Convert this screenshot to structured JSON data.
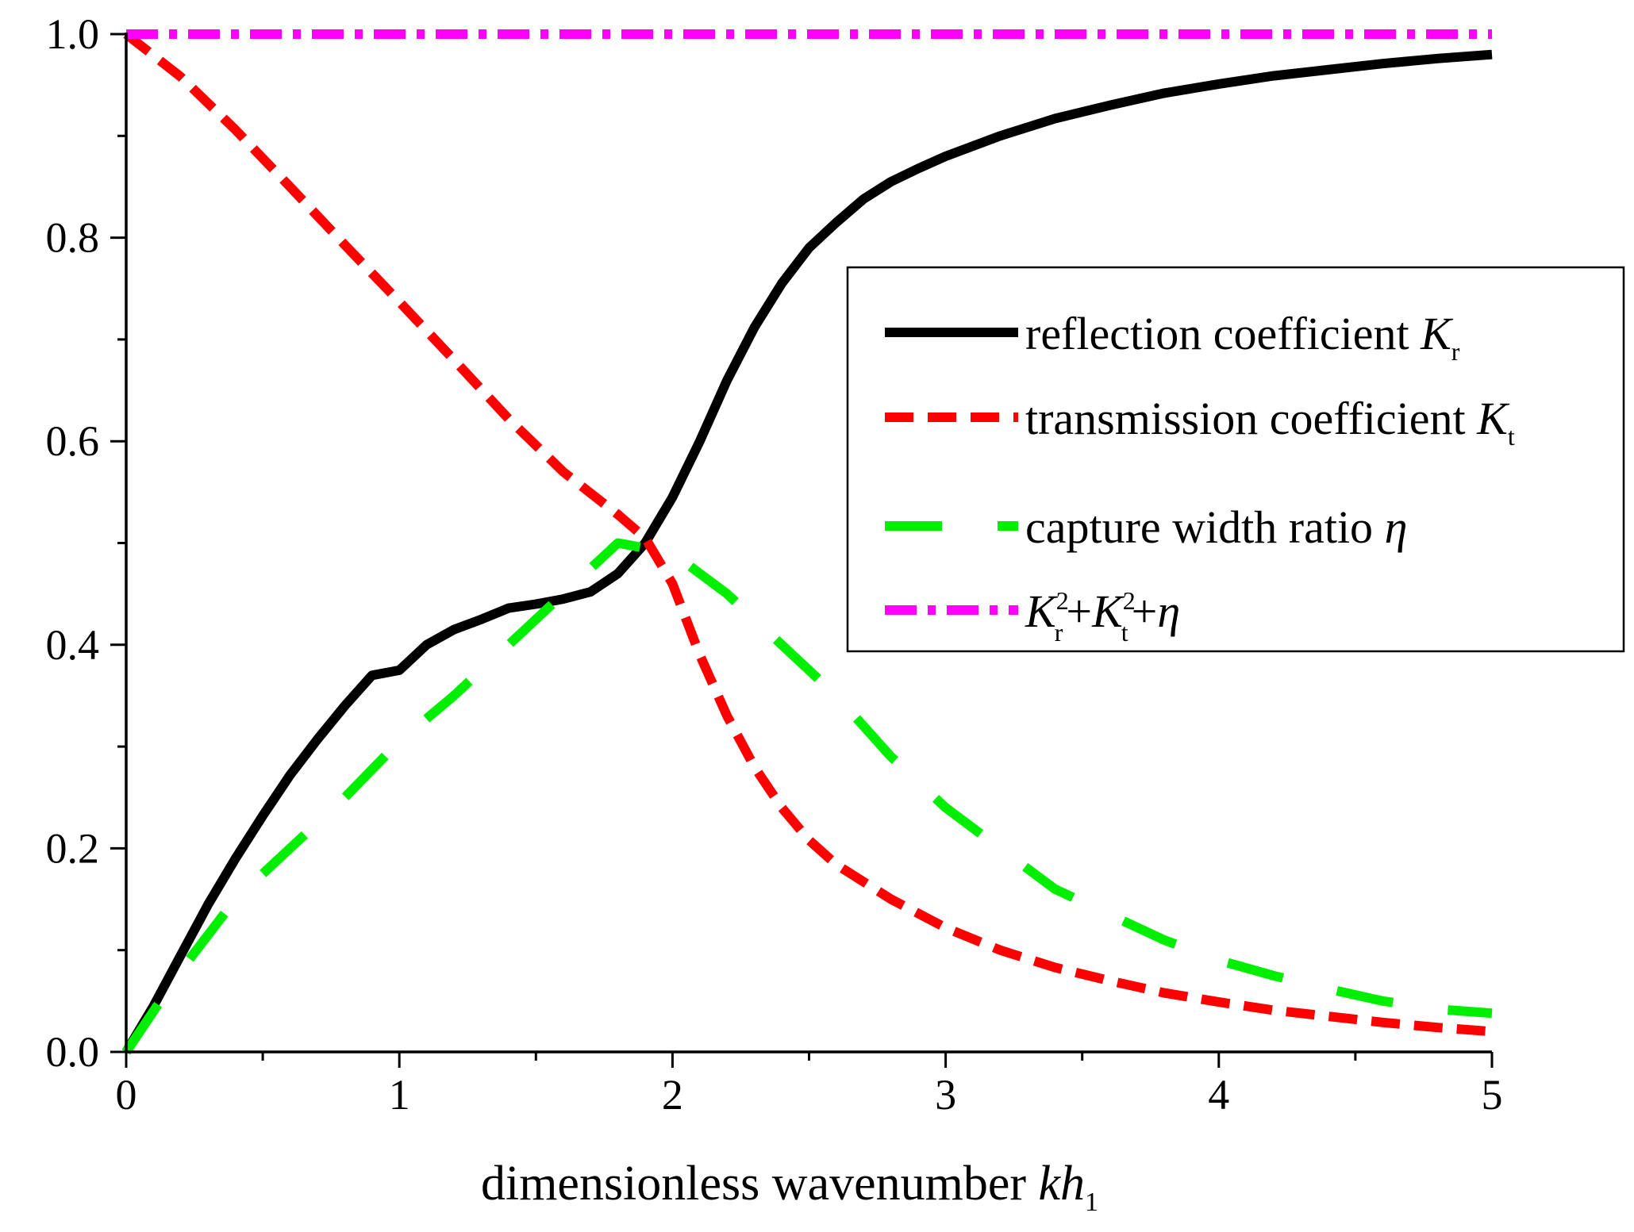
{
  "chart_data": {
    "type": "line",
    "title": "",
    "xlabel": "dimensionless wavenumber kh1",
    "xlabel_parts": {
      "main": "dimensionless wavenumber ",
      "italic": "kh",
      "sub": "1"
    },
    "ylabel": "",
    "xlim": [
      0,
      5
    ],
    "ylim": [
      0,
      1
    ],
    "x_ticks": [
      0,
      1,
      2,
      3,
      4,
      5
    ],
    "x_tick_labels": [
      "0",
      "1",
      "2",
      "3",
      "4",
      "5"
    ],
    "y_ticks": [
      0,
      0.2,
      0.4,
      0.6,
      0.8,
      1.0
    ],
    "y_tick_labels": [
      "0.0",
      "0.2",
      "0.4",
      "0.6",
      "0.8",
      "1.0"
    ],
    "grid": false,
    "legend_position": "right",
    "series": [
      {
        "name": "reflection coefficient Kr",
        "legend_label": "reflection coefficient ",
        "legend_symbol": "K",
        "legend_sub": "r",
        "color": "#000000",
        "style": "solid",
        "x": [
          0,
          0.1,
          0.2,
          0.3,
          0.4,
          0.5,
          0.6,
          0.7,
          0.8,
          0.9,
          1.0,
          1.1,
          1.2,
          1.3,
          1.4,
          1.5,
          1.6,
          1.7,
          1.8,
          1.9,
          2.0,
          2.1,
          2.2,
          2.3,
          2.4,
          2.5,
          2.6,
          2.7,
          2.8,
          2.9,
          3.0,
          3.2,
          3.4,
          3.6,
          3.8,
          4.0,
          4.2,
          4.4,
          4.6,
          4.8,
          5.0
        ],
        "y": [
          0.0,
          0.045,
          0.095,
          0.145,
          0.19,
          0.232,
          0.272,
          0.307,
          0.34,
          0.37,
          0.375,
          0.4,
          0.415,
          0.425,
          0.436,
          0.44,
          0.445,
          0.452,
          0.47,
          0.5,
          0.545,
          0.6,
          0.66,
          0.712,
          0.755,
          0.79,
          0.815,
          0.838,
          0.855,
          0.868,
          0.88,
          0.9,
          0.917,
          0.93,
          0.942,
          0.951,
          0.959,
          0.965,
          0.971,
          0.976,
          0.98
        ]
      },
      {
        "name": "transmission coefficient Kt",
        "legend_label": "transmission coefficient ",
        "legend_symbol": "K",
        "legend_sub": "t",
        "color": "#ff0000",
        "style": "dash",
        "x": [
          0,
          0.2,
          0.4,
          0.6,
          0.8,
          1.0,
          1.2,
          1.4,
          1.6,
          1.8,
          1.9,
          2.0,
          2.1,
          2.2,
          2.3,
          2.4,
          2.5,
          2.6,
          2.8,
          3.0,
          3.2,
          3.4,
          3.6,
          3.8,
          4.0,
          4.2,
          4.4,
          4.6,
          4.8,
          5.0
        ],
        "y": [
          1.0,
          0.958,
          0.906,
          0.85,
          0.793,
          0.737,
          0.68,
          0.622,
          0.57,
          0.528,
          0.505,
          0.46,
          0.39,
          0.33,
          0.28,
          0.24,
          0.208,
          0.184,
          0.15,
          0.122,
          0.1,
          0.083,
          0.07,
          0.058,
          0.049,
          0.041,
          0.035,
          0.029,
          0.024,
          0.02
        ]
      },
      {
        "name": "capture width ratio eta",
        "legend_label": "capture width ratio ",
        "legend_symbol": "η",
        "legend_sub": "",
        "color": "#00ee00",
        "style": "long-dash",
        "x": [
          0,
          0.2,
          0.4,
          0.6,
          0.8,
          1.0,
          1.2,
          1.4,
          1.6,
          1.8,
          1.9,
          2.0,
          2.2,
          2.4,
          2.6,
          2.8,
          3.0,
          3.2,
          3.4,
          3.6,
          3.8,
          4.0,
          4.2,
          4.4,
          4.6,
          4.8,
          5.0
        ],
        "y": [
          0.0,
          0.08,
          0.15,
          0.2,
          0.25,
          0.305,
          0.35,
          0.4,
          0.45,
          0.5,
          0.495,
          0.49,
          0.45,
          0.4,
          0.35,
          0.29,
          0.24,
          0.2,
          0.16,
          0.135,
          0.11,
          0.09,
          0.075,
          0.062,
          0.05,
          0.042,
          0.038
        ]
      },
      {
        "name": "Kr^2+Kt^2+eta",
        "legend_label": "K r 2 + K t 2 + η",
        "color": "#ff00ff",
        "style": "dash-dot",
        "x": [
          0,
          5
        ],
        "y": [
          1.0,
          1.0
        ]
      }
    ],
    "legend_sum": {
      "k": "K",
      "r": "r",
      "t": "t",
      "two": "2",
      "plus": "+",
      "eta": "η"
    }
  }
}
